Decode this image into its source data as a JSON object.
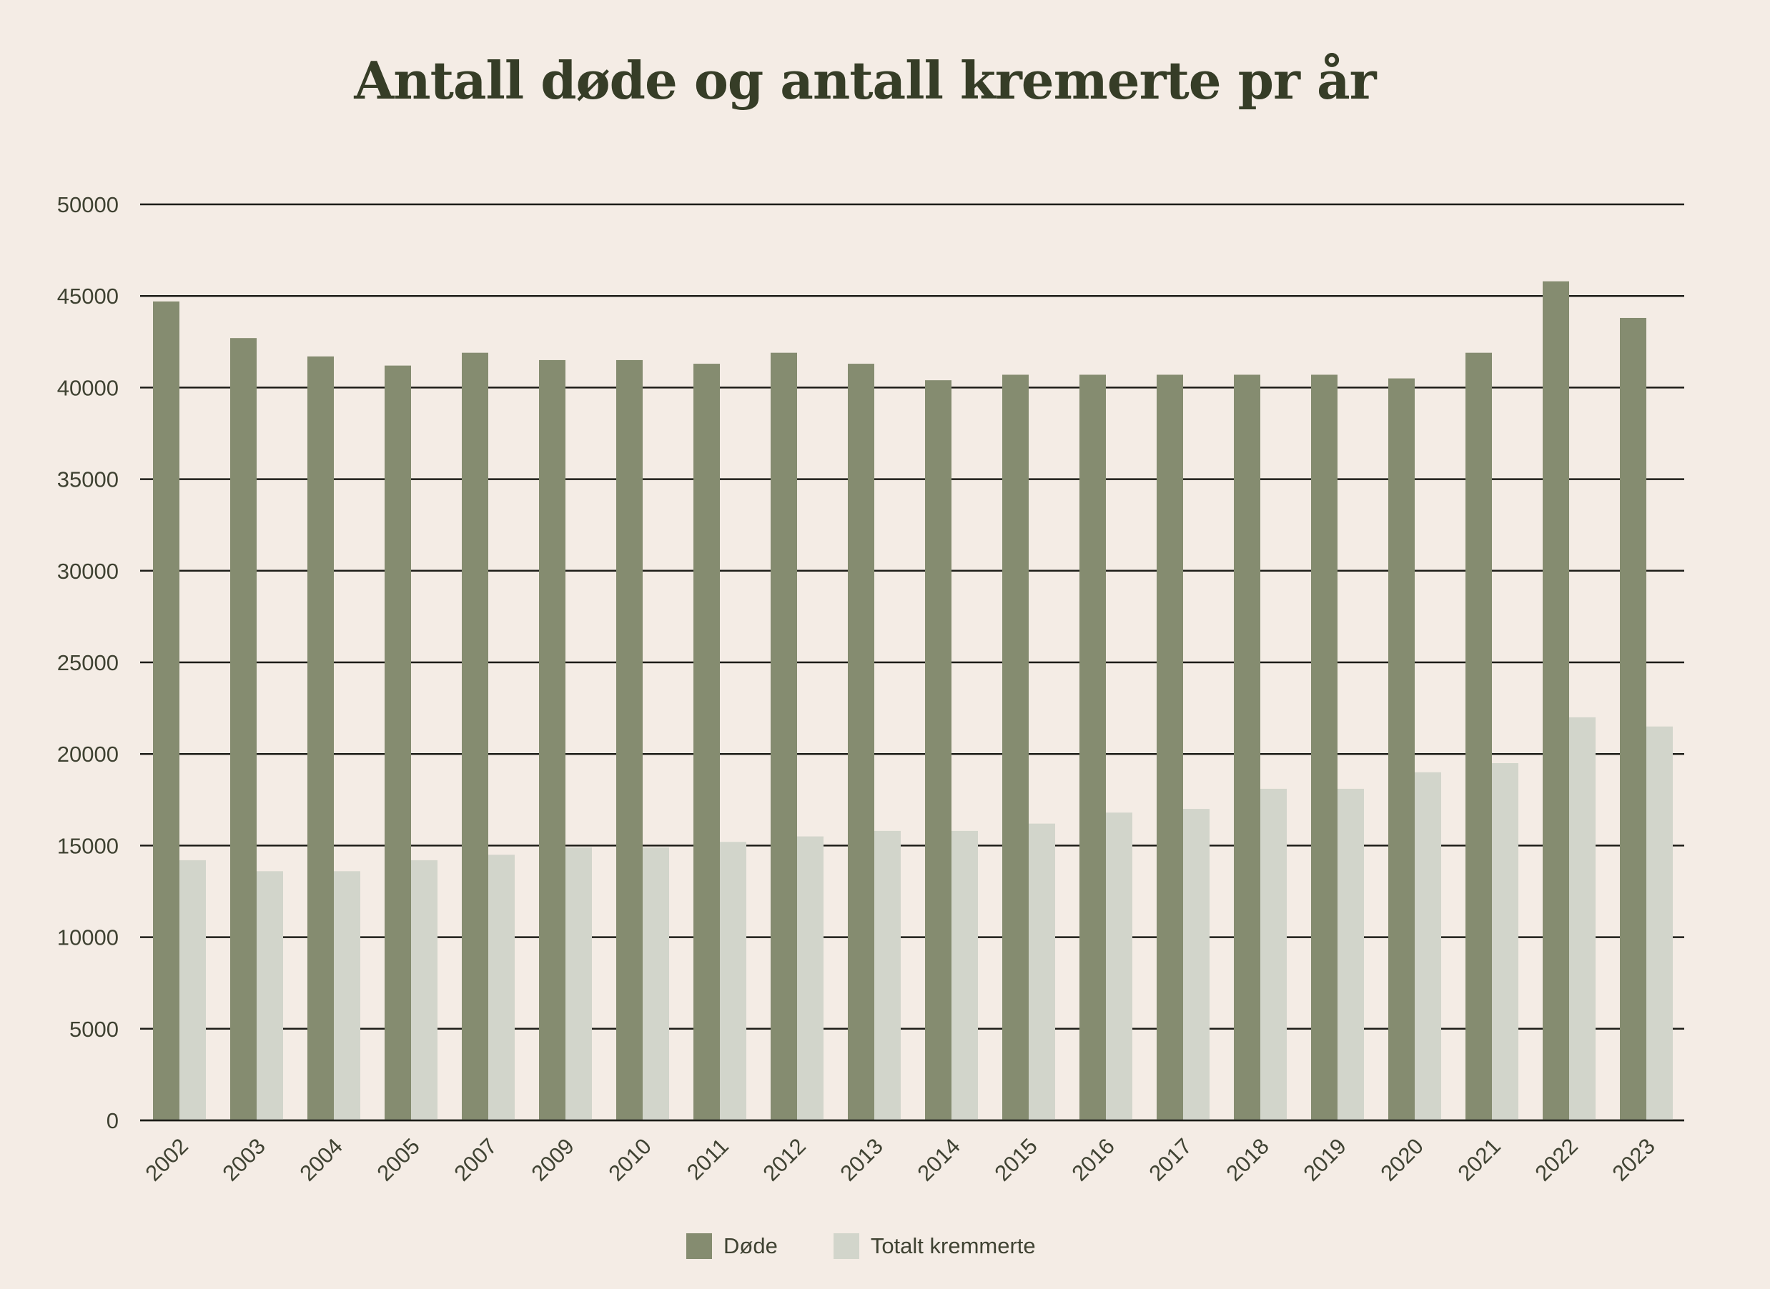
{
  "chart_data": {
    "type": "bar",
    "title": "Antall døde og antall kremerte pr år",
    "xlabel": "",
    "ylabel": "",
    "ylim": [
      0,
      50000
    ],
    "yticks": [
      "0",
      "5000",
      "10000",
      "15000",
      "20000",
      "25000",
      "30000",
      "35000",
      "40000",
      "45000",
      "50000"
    ],
    "grid": true,
    "legend_position": "bottom",
    "categories": [
      "2002",
      "2003",
      "2004",
      "2005",
      "2007",
      "2009",
      "2010",
      "2011",
      "2012",
      "2013",
      "2014",
      "2015",
      "2016",
      "2017",
      "2018",
      "2019",
      "2020",
      "2021",
      "2022",
      "2023"
    ],
    "series": [
      {
        "name": "Døde",
        "color": "#858c70",
        "values": [
          44700,
          42700,
          41700,
          41200,
          41900,
          41500,
          41500,
          41300,
          41900,
          41300,
          40400,
          40700,
          40700,
          40700,
          40700,
          40700,
          40500,
          41900,
          45800,
          43800
        ]
      },
      {
        "name": "Totalt kremmerte",
        "color": "#d2d5cb",
        "values": [
          14200,
          13600,
          13600,
          14200,
          14500,
          14900,
          14900,
          15200,
          15500,
          15800,
          15800,
          16200,
          16800,
          17000,
          18100,
          18100,
          19000,
          19500,
          22000,
          21500
        ]
      }
    ]
  }
}
